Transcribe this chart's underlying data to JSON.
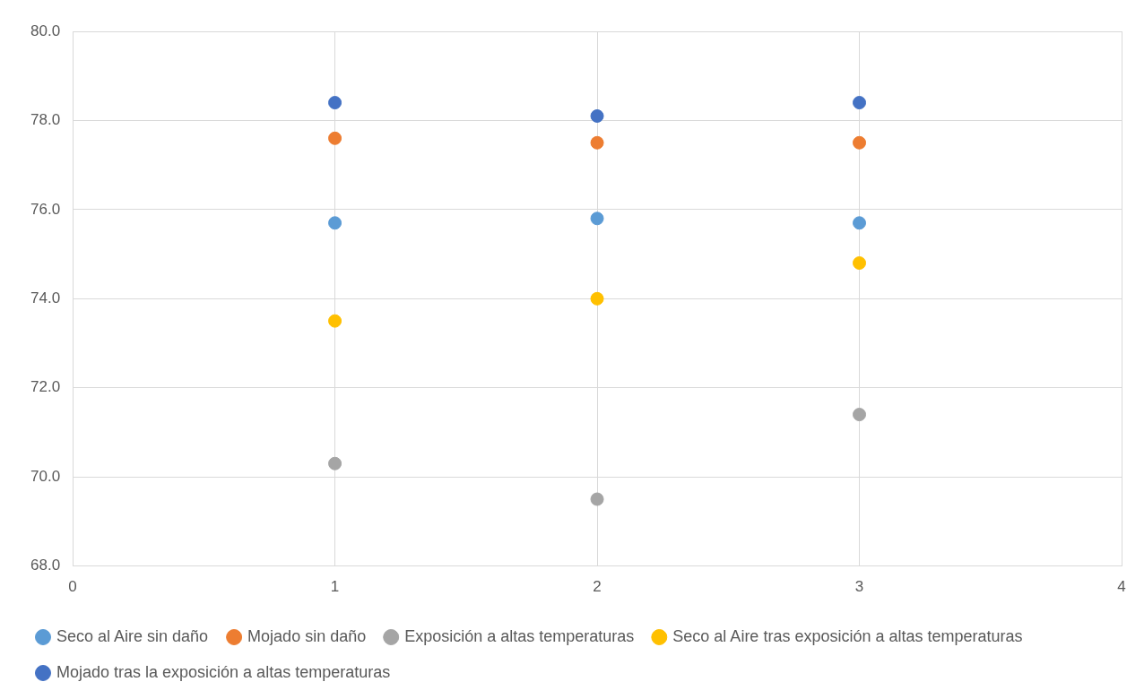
{
  "chart_data": {
    "type": "scatter",
    "x": [
      1,
      2,
      3
    ],
    "series": [
      {
        "name": "Seco al Aire sin daño",
        "color": "#5b9bd5",
        "values": [
          75.7,
          75.8,
          75.7
        ]
      },
      {
        "name": "Mojado sin daño",
        "color": "#ed7d31",
        "values": [
          77.6,
          77.5,
          77.5
        ]
      },
      {
        "name": "Exposición a altas temperaturas",
        "color": "#a5a5a5",
        "values": [
          70.3,
          69.5,
          71.4
        ]
      },
      {
        "name": "Seco al Aire tras exposición a altas temperaturas",
        "color": "#ffc000",
        "values": [
          73.5,
          74.0,
          74.8
        ]
      },
      {
        "name": "Mojado tras la exposición a altas temperaturas",
        "color": "#4472c4",
        "values": [
          78.4,
          78.1,
          78.4
        ]
      }
    ],
    "xlim": [
      0,
      4
    ],
    "xticks": [
      0,
      1,
      2,
      3,
      4
    ],
    "ylim": [
      68,
      80
    ],
    "yticks": [
      {
        "value": 68,
        "label": "68.0"
      },
      {
        "value": 70,
        "label": "70.0"
      },
      {
        "value": 72,
        "label": "72.0"
      },
      {
        "value": 74,
        "label": "74.0"
      },
      {
        "value": 76,
        "label": "76.0"
      },
      {
        "value": 78,
        "label": "78.0"
      },
      {
        "value": 80,
        "label": "80.0"
      }
    ],
    "grid": true,
    "legend": "bottom",
    "marker": "circle"
  }
}
